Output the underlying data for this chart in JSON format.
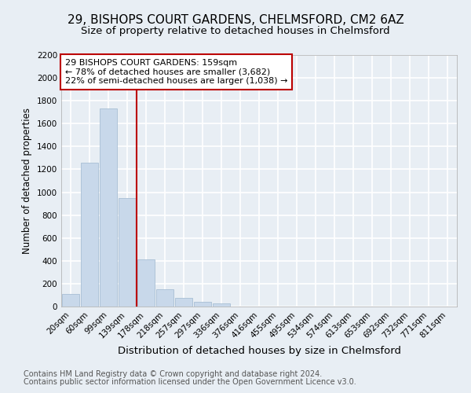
{
  "title1": "29, BISHOPS COURT GARDENS, CHELMSFORD, CM2 6AZ",
  "title2": "Size of property relative to detached houses in Chelmsford",
  "xlabel": "Distribution of detached houses by size in Chelmsford",
  "ylabel": "Number of detached properties",
  "categories": [
    "20sqm",
    "60sqm",
    "99sqm",
    "139sqm",
    "178sqm",
    "218sqm",
    "257sqm",
    "297sqm",
    "336sqm",
    "376sqm",
    "416sqm",
    "455sqm",
    "495sqm",
    "534sqm",
    "574sqm",
    "613sqm",
    "653sqm",
    "692sqm",
    "732sqm",
    "771sqm",
    "811sqm"
  ],
  "values": [
    110,
    1260,
    1730,
    950,
    410,
    150,
    75,
    40,
    25,
    0,
    0,
    0,
    0,
    0,
    0,
    0,
    0,
    0,
    0,
    0,
    0
  ],
  "bar_color": "#c8d8ea",
  "bar_edge_color": "#a8bfd4",
  "vline_x": 3.5,
  "vline_color": "#bb0000",
  "ylim": [
    0,
    2200
  ],
  "yticks": [
    0,
    200,
    400,
    600,
    800,
    1000,
    1200,
    1400,
    1600,
    1800,
    2000,
    2200
  ],
  "annotation_text": "29 BISHOPS COURT GARDENS: 159sqm\n← 78% of detached houses are smaller (3,682)\n22% of semi-detached houses are larger (1,038) →",
  "annotation_box_edgecolor": "#bb0000",
  "footer1": "Contains HM Land Registry data © Crown copyright and database right 2024.",
  "footer2": "Contains public sector information licensed under the Open Government Licence v3.0.",
  "bg_color": "#e8eef4",
  "grid_color": "#ffffff",
  "title1_fontsize": 11,
  "title2_fontsize": 9.5,
  "xlabel_fontsize": 9.5,
  "ylabel_fontsize": 8.5,
  "tick_fontsize": 7.5,
  "ann_fontsize": 8,
  "footer_fontsize": 7
}
